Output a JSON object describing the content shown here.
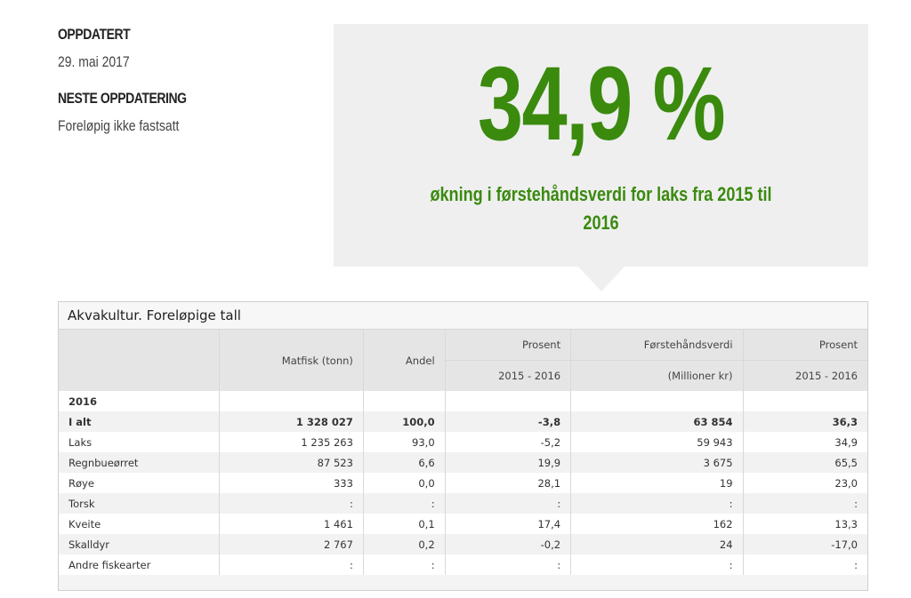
{
  "meta": {
    "updated_label": "OPPDATERT",
    "updated_value": "29. mai 2017",
    "next_label": "NESTE OPPDATERING",
    "next_value": "Foreløpig ikke fastsatt"
  },
  "highlight": {
    "value": "34,9 %",
    "text": "økning i førstehåndsverdi for laks fra 2015 til 2016",
    "color": "#3a8a0e"
  },
  "table": {
    "title": "Akvakultur. Foreløpige tall",
    "headers": {
      "matfisk": "Matfisk (tonn)",
      "andel": "Andel",
      "prosent1": "Prosent",
      "prosent1_sub": "2015 - 2016",
      "verdi": "Førstehåndsverdi",
      "verdi_sub": "(Millioner kr)",
      "prosent2": "Prosent",
      "prosent2_sub": "2015 - 2016"
    },
    "year": "2016",
    "rows": [
      {
        "label": "I alt",
        "matfisk": "1 328 027",
        "andel": "100,0",
        "p1": "-3,8",
        "verdi": "63 854",
        "p2": "36,3"
      },
      {
        "label": "Laks",
        "matfisk": "1 235 263",
        "andel": "93,0",
        "p1": "-5,2",
        "verdi": "59 943",
        "p2": "34,9"
      },
      {
        "label": "Regnbueørret",
        "matfisk": "87 523",
        "andel": "6,6",
        "p1": "19,9",
        "verdi": "3 675",
        "p2": "65,5"
      },
      {
        "label": "Røye",
        "matfisk": "333",
        "andel": "0,0",
        "p1": "28,1",
        "verdi": "19",
        "p2": "23,0"
      },
      {
        "label": "Torsk",
        "matfisk": ":",
        "andel": ":",
        "p1": ":",
        "verdi": ":",
        "p2": ":"
      },
      {
        "label": "Kveite",
        "matfisk": "1 461",
        "andel": "0,1",
        "p1": "17,4",
        "verdi": "162",
        "p2": "13,3"
      },
      {
        "label": "Skalldyr",
        "matfisk": "2 767",
        "andel": "0,2",
        "p1": "-0,2",
        "verdi": "24",
        "p2": "-17,0"
      },
      {
        "label": "Andre fiskearter",
        "matfisk": ":",
        "andel": ":",
        "p1": ":",
        "verdi": ":",
        "p2": ":"
      }
    ]
  }
}
